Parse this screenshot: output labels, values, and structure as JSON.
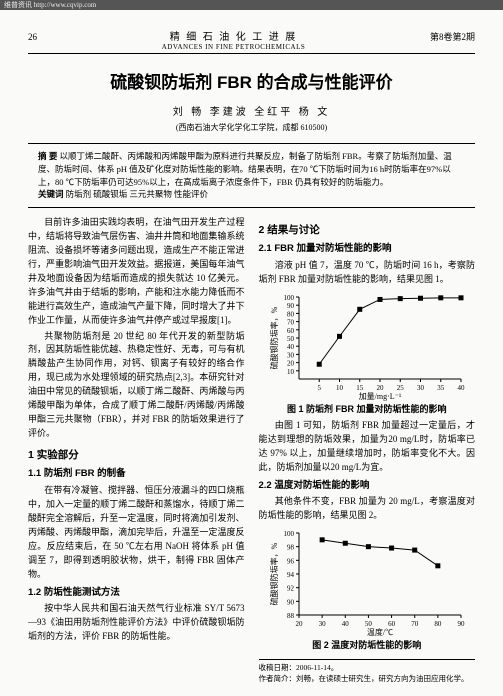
{
  "topbar": "维普资讯 http://www.cqvip.com",
  "header": {
    "page_num": "26",
    "journal_cn": "精 细 石 油 化 工 进 展",
    "journal_en": "ADVANCES IN FINE PETROCHEMICALS",
    "issue": "第8卷第2期"
  },
  "title": "硫酸钡防垢剂 FBR 的合成与性能评价",
  "authors": "刘 畅  李建波  全红平  杨 文",
  "affil": "(西南石油大学化学化工学院，成都 610500)",
  "abstract": {
    "label1": "摘 要",
    "text": "以顺丁烯二酸酐、丙烯酸和丙烯酸甲酯为原料进行共聚反应，制备了防垢剂 FBR。考察了防垢剂加量、温度、防垢时间、体系 pH 值及矿化度对防垢性能的影响。结果表明，在70 ℃下防垢时间为16 h时防垢率在97%以上，80 ℃下防垢率仍可达95%以上，在高成垢离子浓度条件下，FBR 仍具有较好的防垢能力。",
    "label2": "关键词",
    "keywords": "防垢剂  硫酸钡垢  三元共聚物  性能评价"
  },
  "left": {
    "intro1": "目前许多油田实践均表明，在油气田开发生产过程中，结垢将导致油气层伤害、油井井筒和地面集输系统阻流、设备损坏等诸多问题出现，造成生产不能正常进行，严重影响油气田开发效益。据报道，美国每年油气井及地面设备因为结垢而造成的损失就达 10 亿美元。许多油气井由于结垢的影响，产能和注水能力降低而不能进行高效生产，造成油气产量下降，同时增大了井下作业工作量，从而使许多油气井停产或过早报废[1]。",
    "intro2": "共聚物防垢剂是 20 世纪 80 年代开发的新型防垢剂，因其防垢性能优越、热稳定性好、无毒，可与有机膦酸盐产生协同作用，对钙、钡离子有较好的络合作用，现已成为水处理领域的研究热点[2,3]。本研究针对油田中常见的硫酸钡垢，以顺丁烯二酸酐、丙烯酸与丙烯酸甲酯为单体，合成了顺丁烯二酸酐/丙烯酸/丙烯酸甲酯三元共聚物（FBR），并对 FBR 的防垢效果进行了评价。",
    "sec1": "1 实验部分",
    "sec11": "1.1 防垢剂 FBR 的制备",
    "p11": "在带有冷凝管、搅拌器、恒压分液漏斗的四口烧瓶中，加入一定量的顺丁烯二酸酐和蒸馏水，待顺丁烯二酸酐完全溶解后，升至一定温度，同时将滴加引发剂、丙烯酸、丙烯酸甲酯，滴加完毕后，升温至一定温度反应。反应结束后，在 50 ℃左右用 NaOH 将体系 pH 值调至 7，即得到透明胶状物，烘干，制得 FBR 固体产物。",
    "sec12": "1.2 防垢性能测试方法",
    "p12": "按中华人民共和国石油天然气行业标准 SY/T 5673—93《油田用防垢剂性能评价方法》中评价硫酸钡垢防垢剂的方法，评价 FBR 的防垢性能。"
  },
  "right": {
    "sec2": "2 结果与讨论",
    "sec21": "2.1 FBR 加量对防垢性能的影响",
    "p21": "溶液 pH 值 7，温度 70 ℃，防垢时间 16 h，考察防垢剂 FBR 加量对防垢性能的影响，结果见图 1。",
    "fig1_caption": "图 1  防垢剂 FBR 加量对防垢性能的影响",
    "p22": "由图 1 可知，防垢剂 FBR 加量超过一定量后，才能达到理想的防垢效果，加量为20 mg/L时，防垢率已达 97% 以上，加量继续增加时，防垢率变化不大。因此，防垢剂加量以20 mg/L为宜。",
    "sec22": "2.2 温度对防垢性能的影响",
    "p23": "其他条件不变，FBR 加量为 20 mg/L，考察温度对防垢性能的影响，结果见图 2。",
    "fig2_caption": "图 2  温度对防垢性能的影响"
  },
  "footnote": {
    "date": "收稿日期：2006-11-14。",
    "bio": "作者简介：刘畅，在读硕士研究生，研究方向为油田应用化学。"
  },
  "chart1": {
    "type": "line",
    "bg": "#fafaf8",
    "axis_color": "#000000",
    "line_color": "#000000",
    "marker": "square",
    "xlabel": "加量/mg·L⁻¹",
    "ylabel": "硫酸钡防垢率，%",
    "xlim": [
      0,
      40
    ],
    "ylim": [
      0,
      100
    ],
    "xticks": [
      5,
      10,
      15,
      20,
      25,
      30,
      35,
      40
    ],
    "yticks": [
      10,
      20,
      30,
      40,
      50,
      60,
      70,
      80,
      90,
      100
    ],
    "points": [
      [
        5,
        18
      ],
      [
        10,
        52
      ],
      [
        15,
        85
      ],
      [
        20,
        97
      ],
      [
        25,
        98
      ],
      [
        30,
        98.5
      ],
      [
        35,
        99
      ],
      [
        40,
        99
      ]
    ]
  },
  "chart2": {
    "type": "line",
    "bg": "#fafaf8",
    "axis_color": "#000000",
    "line_color": "#000000",
    "marker": "square",
    "xlabel": "温度/℃",
    "ylabel": "硫酸钡防垢率，%",
    "xlim": [
      20,
      90
    ],
    "ylim": [
      88,
      100
    ],
    "xticks": [
      20,
      30,
      40,
      50,
      60,
      70,
      80,
      90
    ],
    "yticks": [
      88,
      90,
      92,
      94,
      96,
      98,
      100
    ],
    "points": [
      [
        30,
        99
      ],
      [
        40,
        98.5
      ],
      [
        50,
        98
      ],
      [
        60,
        97.8
      ],
      [
        70,
        97.5
      ],
      [
        80,
        95.2
      ]
    ]
  }
}
